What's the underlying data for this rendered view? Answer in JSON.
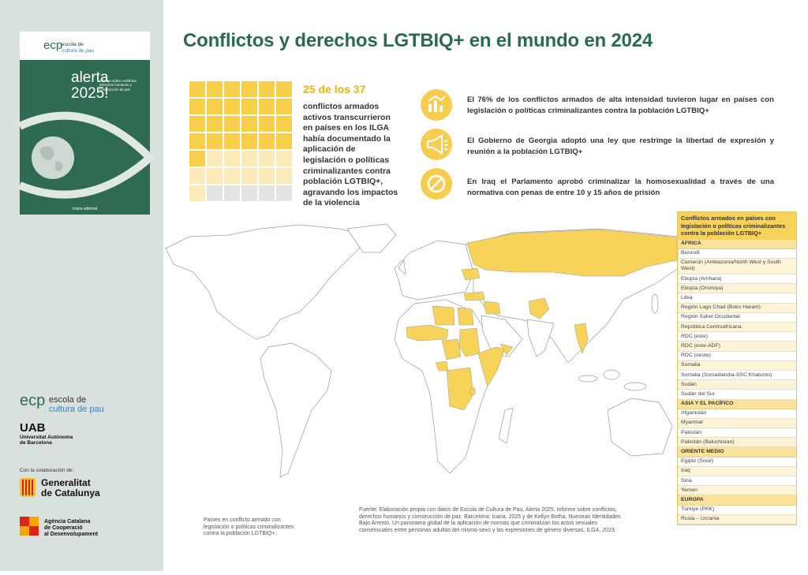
{
  "sidebar": {
    "cover": {
      "logo": "ecp",
      "brand_line1": "escola de",
      "brand_line2": "cultura de pau",
      "title_line1": "alerta",
      "title_line2": "2025!",
      "subtitle": "Informe sobre conflictos, derechos humanos y construcción de paz",
      "publisher": "Icaria editorial"
    },
    "logos": {
      "ecp": "ecp",
      "ecp_line1": "escola de",
      "ecp_line2": "cultura de pau",
      "uab": "UAB",
      "uab_line1": "Universitat Autònoma",
      "uab_line2": "de Barcelona",
      "collab": "Con la colaboración de:",
      "generalitat_line1": "Generalitat",
      "generalitat_line2": "de Catalunya",
      "accd_line1": "Agència Catalana",
      "accd_line2": "de Cooperació",
      "accd_line3": "al Desenvolupament"
    }
  },
  "title": "Conflictos y derechos LGTBIQ+ en el mundo en 2024",
  "stat": {
    "headline": "25 de los 37",
    "filled": 25,
    "total": 37,
    "text": "conflictos armados activos transcurrieron en países en los ILGA había documentado la aplicación de legislación o políticas criminalizantes contra población LGTBIQ+, agravando los impactos de la violencia"
  },
  "facts": [
    "El 76% de los conflictos armados de alta intensidad tuvieron lugar en países con legislación o políticas criminalizantes contra la población LGTBIQ+",
    "El Gobierno de Georgia adoptó una ley que restringe la libertad de expresión y reunión a la población LGTBIQ+",
    "En Iraq el Parlamento aprobó criminalizar la homosexualidad a través de una normativa con penas de entre 10 y 15 años de prisión"
  ],
  "table": {
    "title": "Conflictos armados en países con legislación o políticas criminalizantes contra la población LGTBIQ+",
    "sections": [
      {
        "name": "ÁFRICA",
        "rows": [
          "Burundi",
          "Camerún (Ambazonia/North West y South West)",
          "Etiopía (Amhara)",
          "Etiopía (Oromiya)",
          "Libia",
          "Región Lago Chad (Boko Haram)",
          "Región Sahel Occidental",
          "República Centroafricana",
          "RDC (este)",
          "RDC (este-ADF)",
          "RDC (oeste)",
          "Somalia",
          "Somalia (Somalilandia-SSC Khatumo)",
          "Sudán",
          "Sudán del Sur"
        ]
      },
      {
        "name": "ASIA Y EL PACÍFICO",
        "rows": [
          "Afganistán",
          "Myanmar",
          "Pakistán",
          "Pakistán (Baluchistan)"
        ]
      },
      {
        "name": "ORIENTE MEDIO",
        "rows": [
          "Egipto (Sinaí)",
          "Iraq",
          "Siria",
          "Yemen"
        ]
      },
      {
        "name": "EUROPA",
        "rows": [
          "Türkiye (PKK)",
          "Rusia – Ucrania"
        ]
      }
    ]
  },
  "legend": "Países en conflicto armado con legislación o políticas criminalizantes contra la población LGTBIQ+.",
  "source": "Fuente: Elaboración propia con datos de Escola de Cultura de Pau, Alerta 2025. Informe sobre conflictos, derechos humanos y construcción de paz. Barcelona: Icaria, 2025 y de Kellyn Botha, Nuestras Identidades Bajo Arresto. Un panorama global de la aplicación de normas que criminalizan los actos sexuales consensuales entre personas adultas del mismo-sexo y las expresiones de género diversas, ILGA, 2023."
}
